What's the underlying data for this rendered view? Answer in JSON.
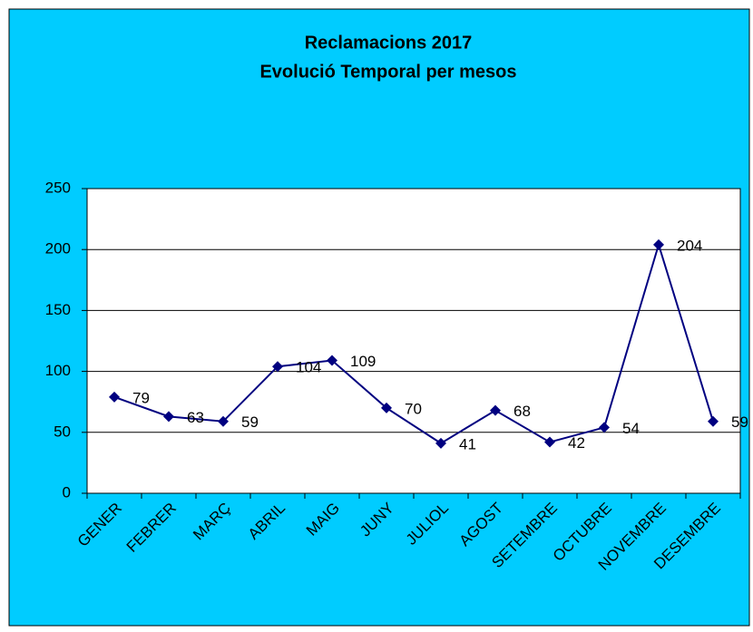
{
  "chart_data": {
    "type": "line",
    "title": [
      "Reclamacions 2017",
      "Evolució Temporal per mesos"
    ],
    "categories": [
      "GENER",
      "FEBRER",
      "MARÇ",
      "ABRIL",
      "MAIG",
      "JUNY",
      "JULIOL",
      "AGOST",
      "SETEMBRE",
      "OCTUBRE",
      "NOVEMBRE",
      "DESEMBRE"
    ],
    "series": [
      {
        "name": "Reclamacions",
        "color": "#000080",
        "values": [
          79,
          63,
          59,
          104,
          109,
          70,
          41,
          68,
          42,
          54,
          204,
          59
        ]
      }
    ],
    "ylim": [
      0,
      250
    ],
    "yticks": [
      0,
      50,
      100,
      150,
      200,
      250
    ],
    "grid": true,
    "background": "#00ccff"
  }
}
